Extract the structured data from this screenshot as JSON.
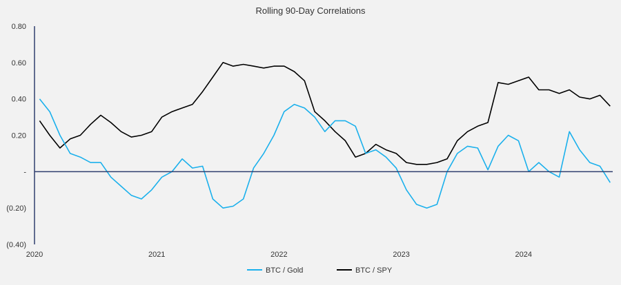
{
  "chart_data": {
    "type": "line",
    "title": "Rolling 90-Day Correlations",
    "xlabel": "",
    "ylabel": "",
    "ylim": [
      -0.4,
      0.8
    ],
    "y_ticks": [
      0.8,
      0.6,
      0.4,
      0.2,
      0,
      -0.2,
      -0.4
    ],
    "y_tick_labels": [
      "0.80",
      "0.60",
      "0.40",
      "0.20",
      "-",
      "(0.20)",
      "(0.40)"
    ],
    "x_tick_labels": [
      "2020",
      "2021",
      "2022",
      "2023",
      "2024"
    ],
    "xlim": [
      "2020-01",
      "2024-09"
    ],
    "grid": false,
    "legend_placement": "bottom",
    "x": [
      "2020-01",
      "2020-02",
      "2020-03",
      "2020-04",
      "2020-05",
      "2020-06",
      "2020-07",
      "2020-08",
      "2020-09",
      "2020-10",
      "2020-11",
      "2020-12",
      "2021-01",
      "2021-02",
      "2021-03",
      "2021-04",
      "2021-05",
      "2021-06",
      "2021-07",
      "2021-08",
      "2021-09",
      "2021-10",
      "2021-11",
      "2021-12",
      "2022-01",
      "2022-02",
      "2022-03",
      "2022-04",
      "2022-05",
      "2022-06",
      "2022-07",
      "2022-08",
      "2022-09",
      "2022-10",
      "2022-11",
      "2022-12",
      "2023-01",
      "2023-02",
      "2023-03",
      "2023-04",
      "2023-05",
      "2023-06",
      "2023-07",
      "2023-08",
      "2023-09",
      "2023-10",
      "2023-11",
      "2023-12",
      "2024-01",
      "2024-02",
      "2024-03",
      "2024-04",
      "2024-05",
      "2024-06",
      "2024-07",
      "2024-08",
      "2024-09"
    ],
    "series": [
      {
        "name": "BTC / Gold",
        "color": "#1ab0ec",
        "values": [
          0.4,
          0.33,
          0.2,
          0.1,
          0.08,
          0.05,
          0.05,
          -0.03,
          -0.08,
          -0.13,
          -0.15,
          -0.1,
          -0.03,
          0.0,
          0.07,
          0.02,
          0.03,
          -0.15,
          -0.2,
          -0.19,
          -0.15,
          0.02,
          0.1,
          0.2,
          0.33,
          0.37,
          0.35,
          0.3,
          0.22,
          0.28,
          0.28,
          0.25,
          0.1,
          0.12,
          0.08,
          0.02,
          -0.1,
          -0.18,
          -0.2,
          -0.18,
          0.0,
          0.1,
          0.14,
          0.13,
          0.01,
          0.14,
          0.2,
          0.17,
          0.0,
          0.05,
          0.0,
          -0.03,
          0.22,
          0.12,
          0.05,
          0.03,
          -0.06
        ]
      },
      {
        "name": "BTC / SPY",
        "color": "#000000",
        "values": [
          0.28,
          0.2,
          0.13,
          0.18,
          0.2,
          0.26,
          0.31,
          0.27,
          0.22,
          0.19,
          0.2,
          0.22,
          0.3,
          0.33,
          0.35,
          0.37,
          0.44,
          0.52,
          0.6,
          0.58,
          0.59,
          0.58,
          0.57,
          0.58,
          0.58,
          0.55,
          0.5,
          0.33,
          0.28,
          0.22,
          0.17,
          0.08,
          0.1,
          0.15,
          0.12,
          0.1,
          0.05,
          0.04,
          0.04,
          0.05,
          0.07,
          0.17,
          0.22,
          0.25,
          0.27,
          0.49,
          0.48,
          0.5,
          0.52,
          0.45,
          0.45,
          0.43,
          0.45,
          0.41,
          0.4,
          0.42,
          0.36
        ]
      }
    ],
    "axis_color": "#2f3e6e"
  }
}
